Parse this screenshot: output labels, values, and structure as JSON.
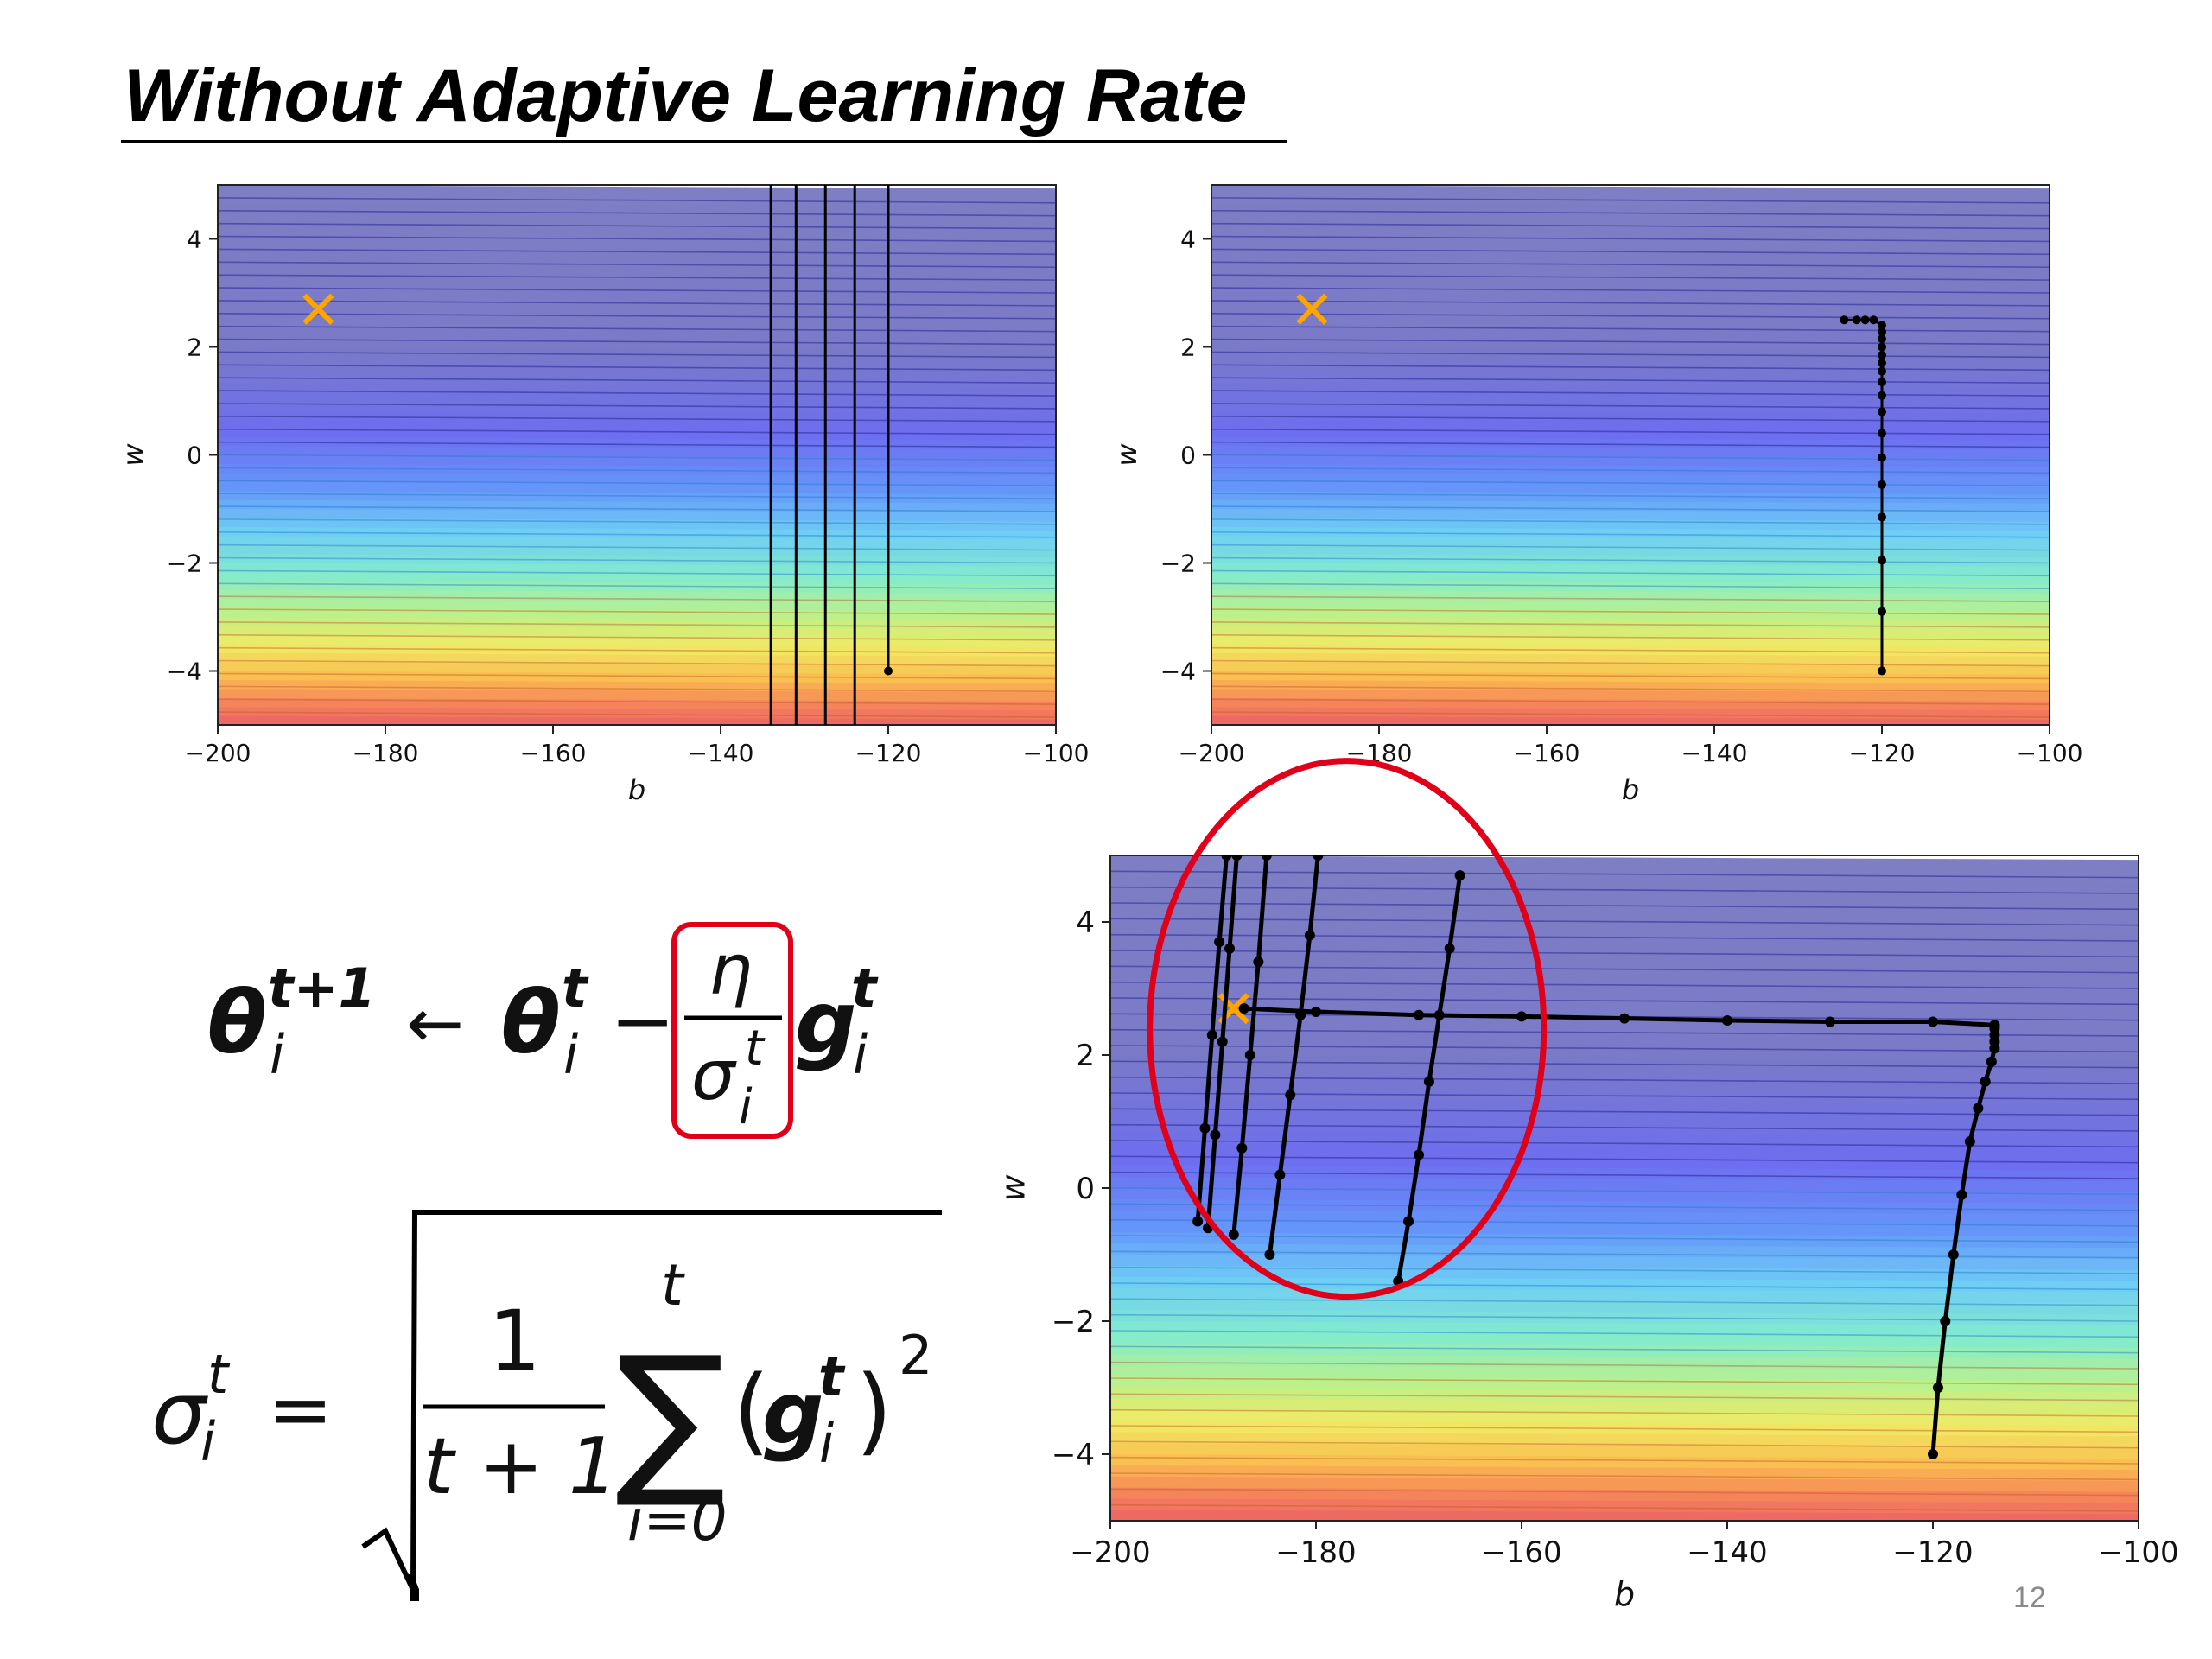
{
  "slide": {
    "title": "Without Adaptive Learning Rate",
    "page_number": "12"
  },
  "colors": {
    "target_marker": "#ffa500",
    "path": "#000000",
    "highlight_box": "#e0001a",
    "highlight_ellipse": "#e0001a"
  },
  "formulas": {
    "update_rule": {
      "lhs": "θ",
      "lhs_sup": "t+1",
      "lhs_sub": "i",
      "arrow": "←",
      "rhs_theta": "θ",
      "rhs_theta_sup": "t",
      "rhs_theta_sub": "i",
      "minus": "−",
      "lr_num": "η",
      "lr_den": "σ",
      "lr_den_sup": "t",
      "lr_den_sub": "i",
      "grad": "g",
      "grad_sup": "t",
      "grad_sub": "i"
    },
    "sigma_rule": {
      "lhs": "σ",
      "lhs_sup": "t",
      "lhs_sub": "i",
      "equals": "=",
      "frac_num": "1",
      "frac_den": "t + 1",
      "sum_symbol": "∑",
      "sum_upper": "t",
      "sum_lower": "i=0",
      "term_open": "(",
      "term_g": "g",
      "term_sup": "t",
      "term_sub": "i",
      "term_close": ")",
      "power": "2"
    }
  },
  "chart_data": [
    {
      "id": "top-left",
      "type": "line",
      "xlabel": "b",
      "ylabel": "w",
      "xlim": [
        -200,
        -100
      ],
      "ylim": [
        -5,
        5
      ],
      "x_ticks": [
        -200,
        -180,
        -160,
        -140,
        -120,
        -100
      ],
      "x_tick_labels": [
        "−200",
        "−180",
        "−160",
        "−140",
        "−120",
        "−100"
      ],
      "y_ticks": [
        -4,
        -2,
        0,
        2,
        4
      ],
      "y_tick_labels": [
        "−4",
        "−2",
        "0",
        "2",
        "4"
      ],
      "background": "contour loss surface (jet colormap, bands vary along w)",
      "target": {
        "b": -188,
        "w": 2.7,
        "marker": "x"
      },
      "series": [
        {
          "x": [
            -120,
            -120
          ],
          "y": [
            -4,
            5
          ],
          "points": [
            [
              -120,
              -4
            ]
          ]
        },
        {
          "x": [
            -124,
            -124
          ],
          "y": [
            -5,
            5
          ]
        },
        {
          "x": [
            -127.5,
            -127.5
          ],
          "y": [
            -5,
            5
          ]
        },
        {
          "x": [
            -131,
            -131
          ],
          "y": [
            -5,
            5
          ]
        },
        {
          "x": [
            -134,
            -134
          ],
          "y": [
            -5,
            5
          ]
        }
      ]
    },
    {
      "id": "top-right",
      "type": "line",
      "xlabel": "b",
      "ylabel": "w",
      "xlim": [
        -200,
        -100
      ],
      "ylim": [
        -5,
        5
      ],
      "x_ticks": [
        -200,
        -180,
        -160,
        -140,
        -120,
        -100
      ],
      "x_tick_labels": [
        "−200",
        "−180",
        "−160",
        "−140",
        "−120",
        "−100"
      ],
      "y_ticks": [
        -4,
        -2,
        0,
        2,
        4
      ],
      "y_tick_labels": [
        "−4",
        "−2",
        "0",
        "2",
        "4"
      ],
      "background": "contour loss surface (jet colormap, bands vary along w)",
      "target": {
        "b": -188,
        "w": 2.7,
        "marker": "x"
      },
      "series": [
        {
          "x": [
            -120,
            -120,
            -120,
            -120,
            -120,
            -120,
            -120,
            -120,
            -120,
            -120,
            -120,
            -120,
            -120,
            -120,
            -120,
            -120,
            -120,
            -121,
            -122,
            -123,
            -124.5
          ],
          "y": [
            -4.0,
            -2.9,
            -1.95,
            -1.15,
            -0.55,
            -0.05,
            0.4,
            0.8,
            1.1,
            1.35,
            1.55,
            1.7,
            1.85,
            2.0,
            2.15,
            2.28,
            2.4,
            2.5,
            2.5,
            2.5,
            2.5
          ]
        }
      ]
    },
    {
      "id": "bottom",
      "type": "line",
      "xlabel": "b",
      "ylabel": "w",
      "xlim": [
        -200,
        -100
      ],
      "ylim": [
        -5,
        5
      ],
      "x_ticks": [
        -200,
        -180,
        -160,
        -140,
        -120,
        -100
      ],
      "x_tick_labels": [
        "−200",
        "−180",
        "−160",
        "−140",
        "−120",
        "−100"
      ],
      "y_ticks": [
        -4,
        -2,
        0,
        2,
        4
      ],
      "y_tick_labels": [
        "−4",
        "−2",
        "0",
        "2",
        "4"
      ],
      "background": "contour loss surface (jet colormap, bands vary along w)",
      "target": {
        "b": -188,
        "w": 2.7,
        "marker": "x"
      },
      "series": [
        {
          "x": [
            -120,
            -119.5,
            -118.8,
            -118,
            -117.2,
            -116.4,
            -115.6,
            -114.9,
            -114.3,
            -114,
            -114,
            -114,
            -114,
            -114
          ],
          "y": [
            -4.0,
            -3.0,
            -2.0,
            -1.0,
            -0.1,
            0.7,
            1.2,
            1.6,
            1.9,
            2.1,
            2.2,
            2.3,
            2.4,
            2.45
          ]
        },
        {
          "x": [
            -114,
            -120,
            -130,
            -140,
            -150,
            -160,
            -170,
            -180,
            -187
          ],
          "y": [
            2.45,
            2.5,
            2.5,
            2.52,
            2.55,
            2.58,
            2.6,
            2.65,
            2.7
          ]
        },
        {
          "x": [
            -172,
            -171,
            -170,
            -169,
            -168,
            -167,
            -166
          ],
          "y": [
            -1.4,
            -0.5,
            0.5,
            1.6,
            2.6,
            3.6,
            4.7
          ]
        },
        {
          "x": [
            -184.5,
            -183.5,
            -182.5,
            -181.5,
            -180.6,
            -179.8
          ],
          "y": [
            -1.0,
            0.2,
            1.4,
            2.6,
            3.8,
            5.0
          ]
        },
        {
          "x": [
            -188,
            -187.2,
            -186.4,
            -185.6,
            -184.8
          ],
          "y": [
            -0.7,
            0.6,
            2.0,
            3.4,
            5.0
          ]
        },
        {
          "x": [
            -190.5,
            -189.8,
            -189.1,
            -188.4,
            -187.7
          ],
          "y": [
            -0.6,
            0.8,
            2.2,
            3.6,
            5.0
          ]
        },
        {
          "x": [
            -191.5,
            -190.8,
            -190.1,
            -189.4,
            -188.7
          ],
          "y": [
            -0.5,
            0.9,
            2.3,
            3.7,
            5.0
          ]
        }
      ]
    }
  ]
}
